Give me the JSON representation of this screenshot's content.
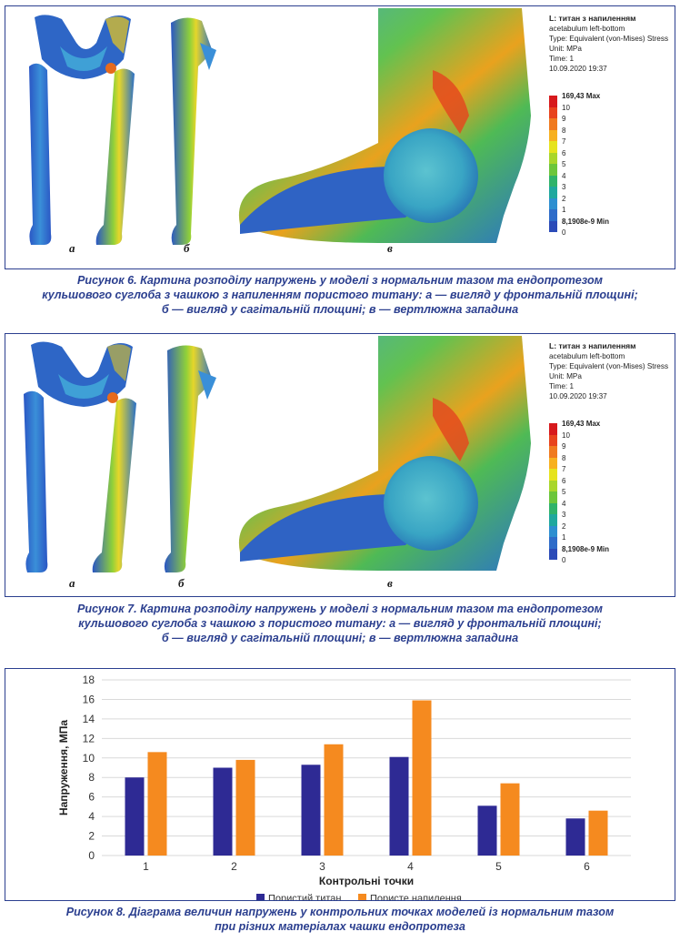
{
  "figure6": {
    "labels": {
      "a": "а",
      "b": "б",
      "c": "в"
    },
    "legend": {
      "title": "L: титан з напиленням",
      "lines": [
        "acetabulum left-bottom",
        "Type: Equivalent (von-Mises) Stress",
        "Unit: MPa",
        "Time: 1",
        "10.09.2020 19:37"
      ],
      "scale": [
        "169,43 Max",
        "10",
        "9",
        "8",
        "7",
        "6",
        "5",
        "4",
        "3",
        "2",
        "1",
        "8,1908e-9 Min",
        "0"
      ]
    },
    "caption": [
      "Рисунок 6. Картина розподілу напружень у моделі з нормальним тазом та ендопротезом",
      "кульшового суглоба з чашкою з напиленням пористого титану: а — вигляд у фронтальній площині;",
      "б — вигляд у сагітальній площині; в — вертлюжна западина"
    ]
  },
  "figure7": {
    "labels": {
      "a": "а",
      "b": "б",
      "c": "в"
    },
    "legend": {
      "title": "L: титан з напиленням",
      "lines": [
        "acetabulum left-bottom",
        "Type: Equivalent (von-Mises) Stress",
        "Unit: MPa",
        "Time: 1",
        "10.09.2020 19:37"
      ],
      "scale": [
        "169,43 Max",
        "10",
        "9",
        "8",
        "7",
        "6",
        "5",
        "4",
        "3",
        "2",
        "1",
        "8,1908e-9 Min",
        "0"
      ]
    },
    "caption": [
      "Рисунок 7. Картина розподілу напружень у моделі з нормальним тазом та ендопротезом",
      "кульшового суглоба з чашкою з пористого титану: а — вигляд у фронтальній площині;",
      "б — вигляд у сагітальній площині; в — вертлюжна западина"
    ]
  },
  "scale_colors": [
    "#d7191c",
    "#e8431d",
    "#f07a1f",
    "#f7b01f",
    "#e6e31d",
    "#a9d62b",
    "#6cc63b",
    "#2fb36a",
    "#1fa89e",
    "#2d8fd0",
    "#2e6cc9",
    "#2b4bb8"
  ],
  "chart_data": {
    "type": "bar",
    "categories": [
      "1",
      "2",
      "3",
      "4",
      "5",
      "6"
    ],
    "series": [
      {
        "name": "Пористий титан",
        "color": "#2e2a94",
        "values": [
          8.0,
          9.0,
          9.3,
          10.1,
          5.1,
          3.8
        ]
      },
      {
        "name": "Пористе напилення",
        "color": "#f58a1f",
        "values": [
          10.6,
          9.8,
          11.4,
          15.9,
          7.4,
          4.6
        ]
      }
    ],
    "xlabel": "Контрольні точки",
    "ylabel": "Напруження, МПа",
    "ylim": [
      0,
      18
    ],
    "yticks": [
      0,
      2,
      4,
      6,
      8,
      10,
      12,
      14,
      16,
      18
    ],
    "grid": true,
    "legend_position": "bottom"
  },
  "figure8": {
    "caption": [
      "Рисунок 8. Діаграма величин напружень у контрольних точках моделей із нормальним тазом",
      "при різних матеріалах чашки ендопротеза"
    ]
  }
}
